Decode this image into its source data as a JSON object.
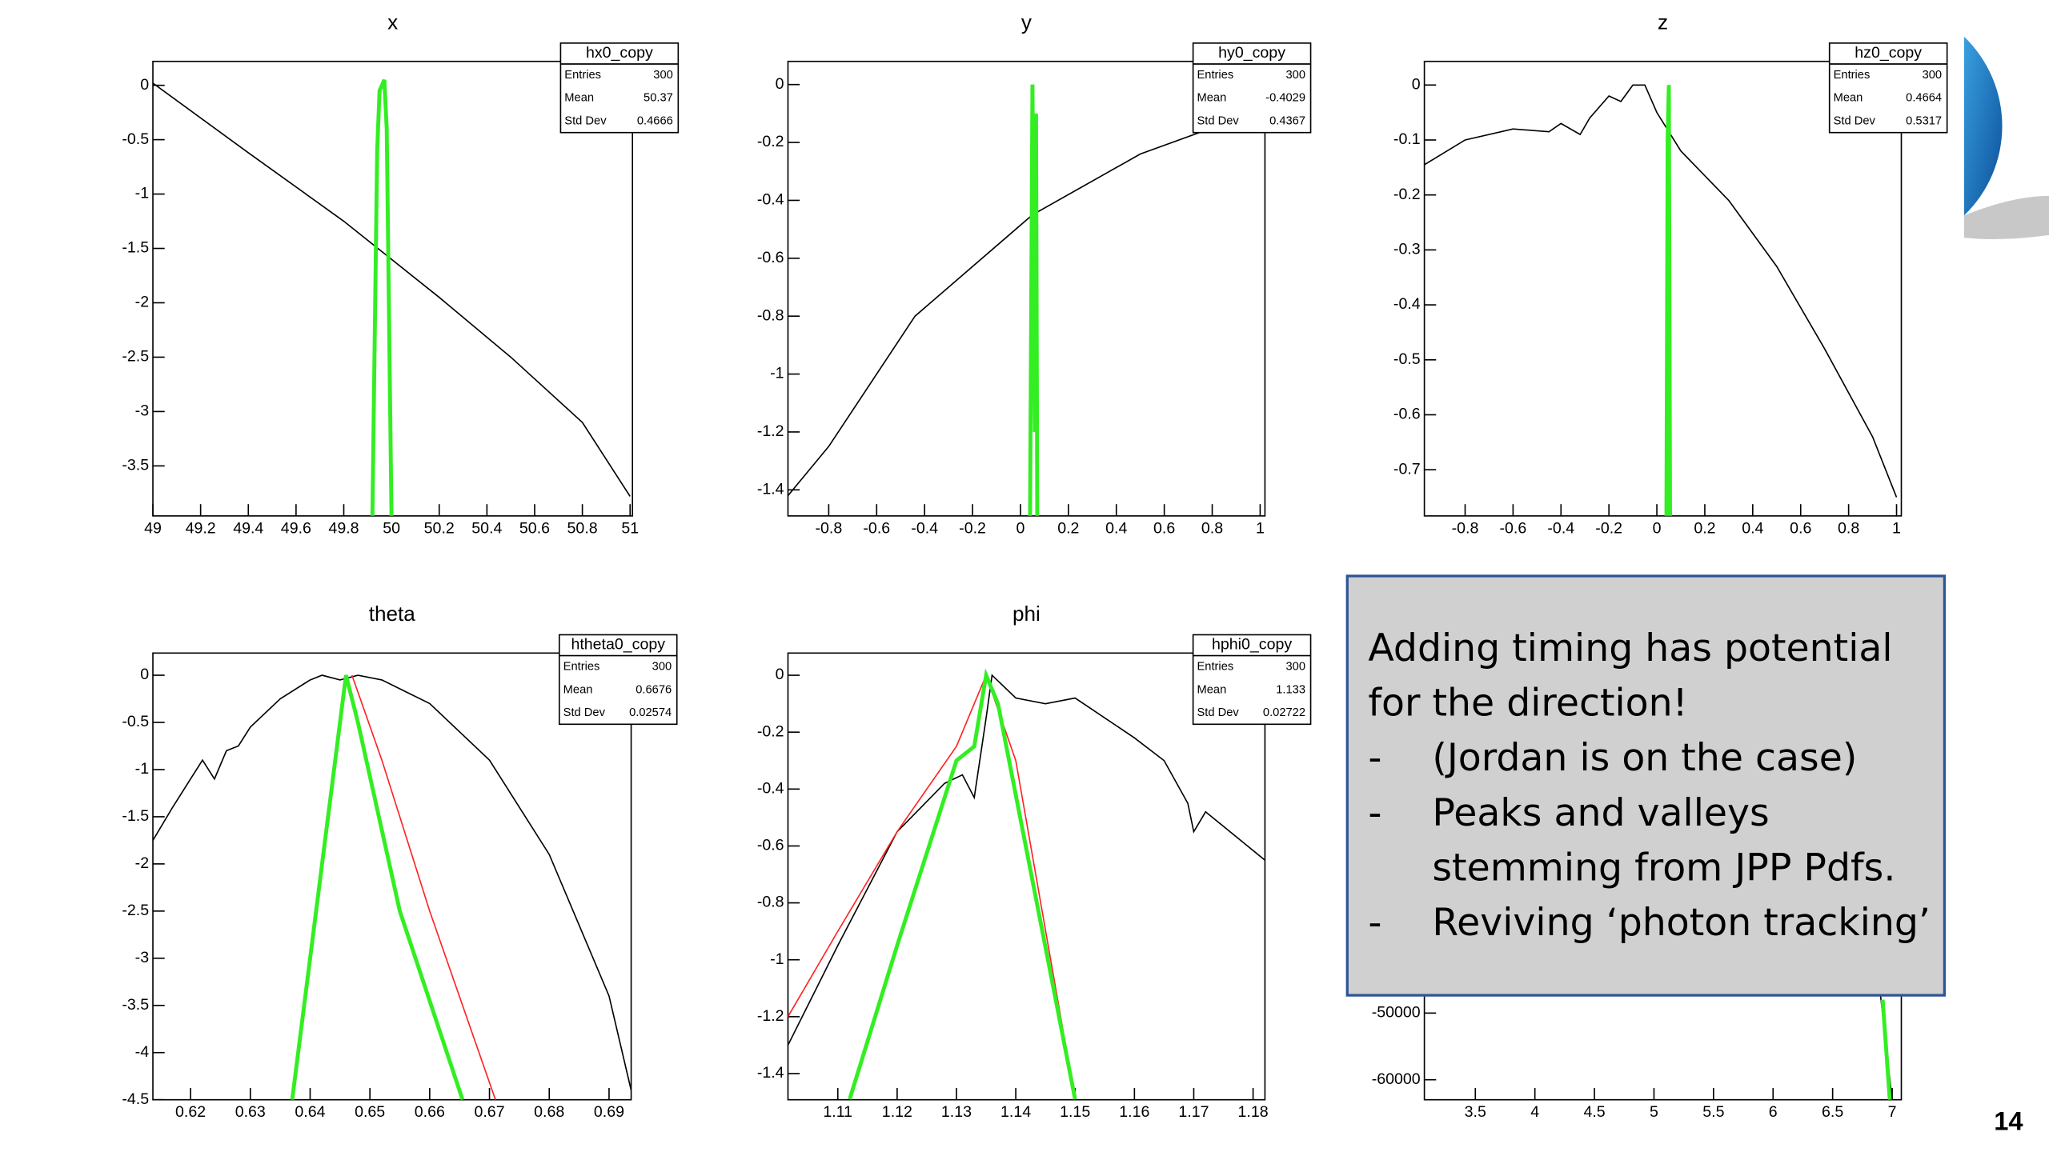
{
  "chart_data": [
    {
      "type": "line",
      "title": "x",
      "xlim": [
        49,
        51.01
      ],
      "ylim": [
        -3.96,
        0.22
      ],
      "xticks": [
        49,
        49.2,
        49.4,
        49.6,
        49.8,
        50,
        50.2,
        50.4,
        50.6,
        50.8,
        51
      ],
      "yticks": [
        0,
        -0.5,
        -1,
        -1.5,
        -2,
        -2.5,
        -3,
        -3.5
      ],
      "stats": {
        "name": "hx0_copy",
        "rows": [
          {
            "label": "Entries",
            "value": 300
          },
          {
            "label": "Mean",
            "value": 50.37
          },
          {
            "label": "Std Dev",
            "value": 0.4666
          }
        ]
      },
      "series": [
        {
          "color": "#000000",
          "x": [
            49,
            49.4,
            49.8,
            50.2,
            50.5,
            50.8,
            51
          ],
          "values": [
            0.02,
            -0.62,
            -1.25,
            -1.95,
            -2.5,
            -3.1,
            -3.78
          ]
        },
        {
          "color": "#33ee22",
          "x": [
            49.92,
            49.94,
            49.95,
            49.97,
            49.98,
            50.0
          ],
          "values": [
            -3.96,
            -0.6,
            -0.05,
            0.05,
            -0.4,
            -3.96
          ]
        }
      ]
    },
    {
      "type": "line",
      "title": "y",
      "xlim": [
        -0.97,
        1.02
      ],
      "ylim": [
        -1.49,
        0.08
      ],
      "xticks": [
        -0.8,
        -0.6,
        -0.4,
        -0.2,
        0,
        0.2,
        0.4,
        0.6,
        0.8,
        1
      ],
      "yticks": [
        0,
        -0.2,
        -0.4,
        -0.6,
        -0.8,
        -1,
        -1.2,
        -1.4
      ],
      "stats": {
        "name": "hy0_copy",
        "rows": [
          {
            "label": "Entries",
            "value": 300
          },
          {
            "label": "Mean",
            "value": -0.4029
          },
          {
            "label": "Std Dev",
            "value": 0.4367
          }
        ]
      },
      "series": [
        {
          "color": "#000000",
          "x": [
            -0.97,
            -0.8,
            -0.44,
            0.05,
            0.5,
            1.0
          ],
          "values": [
            -1.42,
            -1.25,
            -0.8,
            -0.45,
            -0.24,
            -0.09
          ]
        },
        {
          "color": "#33ee22",
          "x": [
            0.04,
            0.05,
            0.06,
            0.065,
            0.07
          ],
          "values": [
            -1.49,
            0,
            -1.2,
            -0.1,
            -1.49
          ]
        }
      ]
    },
    {
      "type": "line",
      "title": "z",
      "xlim": [
        -0.97,
        1.02
      ],
      "ylim": [
        -0.784,
        0.043
      ],
      "xticks": [
        -0.8,
        -0.6,
        -0.4,
        -0.2,
        0,
        0.2,
        0.4,
        0.6,
        0.8,
        1
      ],
      "yticks": [
        0,
        -0.1,
        -0.2,
        -0.3,
        -0.4,
        -0.5,
        -0.6,
        -0.7
      ],
      "stats": {
        "name": "hz0_copy",
        "rows": [
          {
            "label": "Entries",
            "value": 300
          },
          {
            "label": "Mean",
            "value": 0.4664
          },
          {
            "label": "Std Dev",
            "value": 0.5317
          }
        ]
      },
      "series": [
        {
          "color": "#000000",
          "x": [
            -0.97,
            -0.8,
            -0.6,
            -0.45,
            -0.4,
            -0.32,
            -0.28,
            -0.2,
            -0.15,
            -0.1,
            -0.05,
            0.0,
            0.1,
            0.3,
            0.5,
            0.7,
            0.9,
            1.0
          ],
          "values": [
            -0.145,
            -0.1,
            -0.08,
            -0.085,
            -0.07,
            -0.09,
            -0.06,
            -0.02,
            -0.03,
            0.0,
            0.0,
            -0.05,
            -0.12,
            -0.21,
            -0.33,
            -0.48,
            -0.64,
            -0.75
          ]
        },
        {
          "color": "#33ee22",
          "x": [
            0.04,
            0.045,
            0.05,
            0.055
          ],
          "values": [
            -0.784,
            -0.1,
            0,
            -0.784
          ]
        }
      ]
    },
    {
      "type": "line",
      "title": "theta",
      "xlim": [
        0.6137,
        0.6937
      ],
      "ylim": [
        -4.5,
        0.235
      ],
      "xticks": [
        0.62,
        0.63,
        0.64,
        0.65,
        0.66,
        0.67,
        0.68,
        0.69
      ],
      "yticks": [
        0,
        -0.5,
        -1,
        -1.5,
        -2,
        -2.5,
        -3,
        -3.5,
        -4,
        -4.5
      ],
      "stats": {
        "name": "htheta0_copy",
        "rows": [
          {
            "label": "Entries",
            "value": 300
          },
          {
            "label": "Mean",
            "value": 0.6676
          },
          {
            "label": "Std Dev",
            "value": 0.02574
          }
        ]
      },
      "series": [
        {
          "color": "#000000",
          "x": [
            0.6137,
            0.617,
            0.62,
            0.622,
            0.624,
            0.626,
            0.628,
            0.63,
            0.635,
            0.64,
            0.642,
            0.645,
            0.648,
            0.652,
            0.66,
            0.67,
            0.68,
            0.69,
            0.6937
          ],
          "values": [
            -1.75,
            -1.4,
            -1.1,
            -0.9,
            -1.1,
            -0.8,
            -0.75,
            -0.55,
            -0.25,
            -0.05,
            0.0,
            -0.05,
            0.0,
            -0.05,
            -0.3,
            -0.9,
            -1.9,
            -3.4,
            -4.4
          ]
        },
        {
          "color": "#ff2222",
          "x": [
            0.647,
            0.652,
            0.66,
            0.671
          ],
          "values": [
            0,
            -0.9,
            -2.5,
            -4.5
          ]
        },
        {
          "color": "#33ee22",
          "x": [
            0.637,
            0.641,
            0.645,
            0.646,
            0.648,
            0.655,
            0.6655
          ],
          "values": [
            -4.5,
            -2.5,
            -0.5,
            0,
            -0.5,
            -2.5,
            -4.5
          ]
        }
      ]
    },
    {
      "type": "line",
      "title": "phi",
      "xlim": [
        1.1016,
        1.182
      ],
      "ylim": [
        -1.492,
        0.078
      ],
      "xticks": [
        1.11,
        1.12,
        1.13,
        1.14,
        1.15,
        1.16,
        1.17,
        1.18
      ],
      "yticks": [
        0,
        -0.2,
        -0.4,
        -0.6,
        -0.8,
        -1,
        -1.2,
        -1.4
      ],
      "stats": {
        "name": "hphi0_copy",
        "rows": [
          {
            "label": "Entries",
            "value": 300
          },
          {
            "label": "Mean",
            "value": 1.133
          },
          {
            "label": "Std Dev",
            "value": 0.02722
          }
        ]
      },
      "series": [
        {
          "color": "#000000",
          "x": [
            1.1016,
            1.11,
            1.12,
            1.128,
            1.131,
            1.133,
            1.135,
            1.136,
            1.14,
            1.145,
            1.15,
            1.155,
            1.16,
            1.165,
            1.169,
            1.17,
            1.172,
            1.182
          ],
          "values": [
            -1.3,
            -0.95,
            -0.55,
            -0.38,
            -0.35,
            -0.43,
            -0.15,
            0.0,
            -0.08,
            -0.1,
            -0.08,
            -0.15,
            -0.22,
            -0.3,
            -0.45,
            -0.55,
            -0.48,
            -0.65
          ]
        },
        {
          "color": "#ff2222",
          "x": [
            1.1016,
            1.11,
            1.12,
            1.13,
            1.135,
            1.14,
            1.15
          ],
          "values": [
            -1.2,
            -0.9,
            -0.55,
            -0.25,
            0,
            -0.3,
            -1.49
          ]
        },
        {
          "color": "#33ee22",
          "x": [
            1.112,
            1.12,
            1.13,
            1.133,
            1.135,
            1.137,
            1.15
          ],
          "values": [
            -1.49,
            -0.95,
            -0.3,
            -0.25,
            0,
            -0.1,
            -1.49
          ]
        }
      ]
    },
    {
      "type": "line",
      "xlim": [
        3.072,
        7.077
      ],
      "ylim": [
        -63000,
        4000
      ],
      "xticks": [
        3.5,
        4,
        4.5,
        5,
        5.5,
        6,
        6.5,
        7
      ],
      "yticks": [
        -50000,
        -60000
      ],
      "series": [
        {
          "color": "#000000",
          "x": [
            6.9,
            7.0
          ],
          "values": [
            -47000,
            -63000
          ]
        },
        {
          "color": "#33ee22",
          "x": [
            6.92,
            6.98
          ],
          "values": [
            -48000,
            -63000
          ]
        }
      ]
    }
  ],
  "textbox": {
    "heading": [
      "Adding timing has potential",
      "for the direction!"
    ],
    "bullet_marker": "-",
    "bullets": [
      [
        "(Jordan is on the case)"
      ],
      [
        "Peaks and valleys",
        "stemming from JPP Pdfs."
      ],
      [
        "Reviving ‘photon tracking’"
      ]
    ]
  },
  "slide_number": "14"
}
